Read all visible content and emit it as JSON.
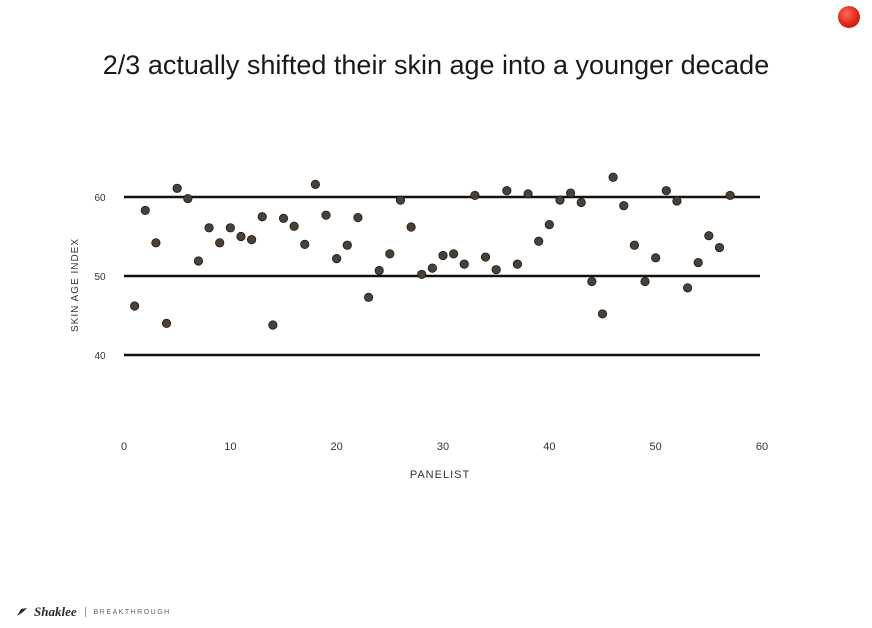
{
  "slide": {
    "title": "2/3 actually shifted their skin age into a younger decade",
    "footer": {
      "brand": "Shaklee",
      "tagline": "BREAKTHROUGH"
    },
    "record_indicator_color": "#e02418"
  },
  "chart_data": {
    "type": "scatter",
    "xlabel": "PANELIST",
    "ylabel": "SKIN AGE INDEX",
    "xlim": [
      0,
      60
    ],
    "ylim": [
      40,
      60
    ],
    "x_ticks": [
      0,
      10,
      20,
      30,
      40,
      50,
      60
    ],
    "y_ticks": [
      40,
      50,
      60
    ],
    "reference_lines": [
      40,
      50,
      60
    ],
    "grid": false,
    "legend": "none",
    "marker_color": "#4a4038",
    "points": [
      {
        "x": 1,
        "y": 46.2
      },
      {
        "x": 2,
        "y": 58.3
      },
      {
        "x": 3,
        "y": 54.2
      },
      {
        "x": 4,
        "y": 44.0
      },
      {
        "x": 5,
        "y": 61.1
      },
      {
        "x": 6,
        "y": 59.8
      },
      {
        "x": 7,
        "y": 51.9
      },
      {
        "x": 8,
        "y": 56.1
      },
      {
        "x": 9,
        "y": 54.2
      },
      {
        "x": 10,
        "y": 56.1
      },
      {
        "x": 11,
        "y": 55.0
      },
      {
        "x": 12,
        "y": 54.6
      },
      {
        "x": 13,
        "y": 57.5
      },
      {
        "x": 14,
        "y": 43.8
      },
      {
        "x": 15,
        "y": 57.3
      },
      {
        "x": 16,
        "y": 56.3
      },
      {
        "x": 17,
        "y": 54.0
      },
      {
        "x": 18,
        "y": 61.6
      },
      {
        "x": 19,
        "y": 57.7
      },
      {
        "x": 20,
        "y": 52.2
      },
      {
        "x": 21,
        "y": 53.9
      },
      {
        "x": 22,
        "y": 57.4
      },
      {
        "x": 23,
        "y": 47.3
      },
      {
        "x": 24,
        "y": 50.7
      },
      {
        "x": 25,
        "y": 52.8
      },
      {
        "x": 26,
        "y": 59.6
      },
      {
        "x": 27,
        "y": 56.2
      },
      {
        "x": 28,
        "y": 50.2
      },
      {
        "x": 29,
        "y": 51.0
      },
      {
        "x": 30,
        "y": 52.6
      },
      {
        "x": 31,
        "y": 52.8
      },
      {
        "x": 32,
        "y": 51.5
      },
      {
        "x": 33,
        "y": 60.2
      },
      {
        "x": 34,
        "y": 52.4
      },
      {
        "x": 35,
        "y": 50.8
      },
      {
        "x": 36,
        "y": 60.8
      },
      {
        "x": 37,
        "y": 51.5
      },
      {
        "x": 38,
        "y": 60.4
      },
      {
        "x": 39,
        "y": 54.4
      },
      {
        "x": 40,
        "y": 56.5
      },
      {
        "x": 41,
        "y": 59.6
      },
      {
        "x": 42,
        "y": 60.5
      },
      {
        "x": 43,
        "y": 59.3
      },
      {
        "x": 44,
        "y": 49.3
      },
      {
        "x": 45,
        "y": 45.2
      },
      {
        "x": 46,
        "y": 62.5
      },
      {
        "x": 47,
        "y": 58.9
      },
      {
        "x": 48,
        "y": 53.9
      },
      {
        "x": 49,
        "y": 49.3
      },
      {
        "x": 50,
        "y": 52.3
      },
      {
        "x": 51,
        "y": 60.8
      },
      {
        "x": 52,
        "y": 59.5
      },
      {
        "x": 53,
        "y": 48.5
      },
      {
        "x": 54,
        "y": 51.7
      },
      {
        "x": 55,
        "y": 55.1
      },
      {
        "x": 56,
        "y": 53.6
      },
      {
        "x": 57,
        "y": 60.2
      }
    ]
  }
}
